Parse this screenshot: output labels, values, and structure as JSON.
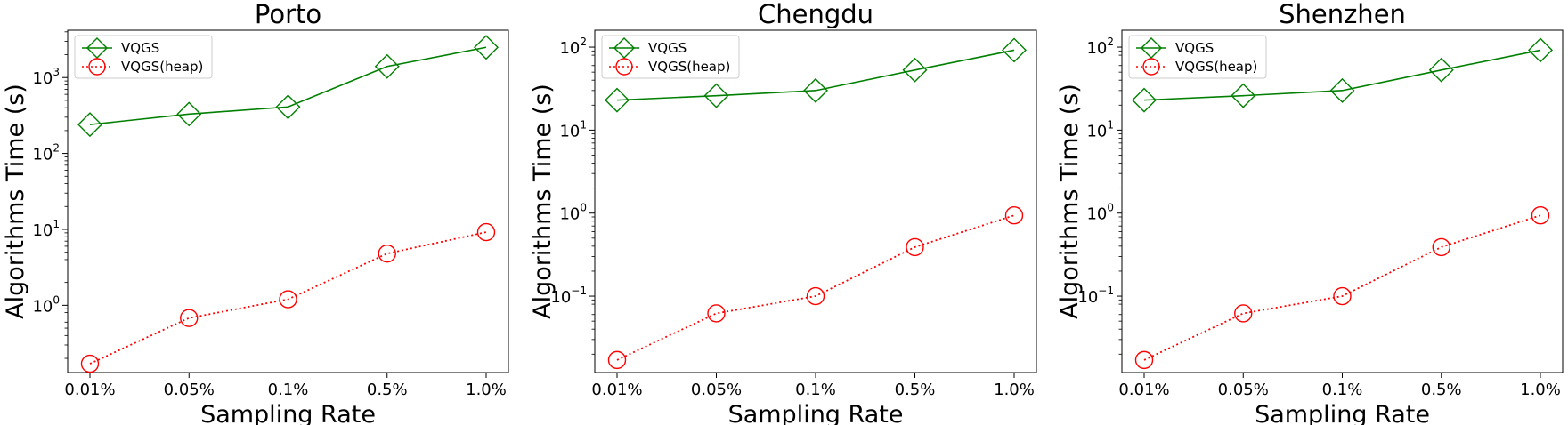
{
  "colors": {
    "vqgs": "#008000",
    "heap": "#ff0000"
  },
  "chart_data": [
    {
      "type": "line",
      "title": "Porto",
      "xlabel": "Sampling Rate",
      "ylabel": "Algorithms Time (s)",
      "yscale": "log",
      "ylim": [
        0.13,
        4200
      ],
      "yticks": [
        {
          "value": 1,
          "base": "10",
          "exp": "0"
        },
        {
          "value": 10,
          "base": "10",
          "exp": "1"
        },
        {
          "value": 100,
          "base": "10",
          "exp": "2"
        },
        {
          "value": 1000,
          "base": "10",
          "exp": "3"
        }
      ],
      "categories": [
        "0.01%",
        "0.05%",
        "0.1%",
        "0.5%",
        "1.0%"
      ],
      "legend": "top-left",
      "grid": false,
      "series": [
        {
          "name": "VQGS",
          "marker": "diamond",
          "line": "solid",
          "values": [
            240,
            330,
            410,
            1400,
            2500
          ]
        },
        {
          "name": "VQGS(heap)",
          "marker": "circle",
          "line": "dotted",
          "values": [
            0.17,
            0.68,
            1.2,
            4.8,
            9.2
          ]
        }
      ]
    },
    {
      "type": "line",
      "title": "Chengdu",
      "xlabel": "Sampling Rate",
      "ylabel": "Algorithms Time (s)",
      "yscale": "log",
      "ylim": [
        0.012,
        160
      ],
      "yticks": [
        {
          "value": 0.1,
          "base": "10",
          "exp": "−1"
        },
        {
          "value": 1,
          "base": "10",
          "exp": "0"
        },
        {
          "value": 10,
          "base": "10",
          "exp": "1"
        },
        {
          "value": 100,
          "base": "10",
          "exp": "2"
        }
      ],
      "categories": [
        "0.01%",
        "0.05%",
        "0.1%",
        "0.5%",
        "1.0%"
      ],
      "legend": "top-left",
      "grid": false,
      "series": [
        {
          "name": "VQGS",
          "marker": "diamond",
          "line": "solid",
          "values": [
            23,
            26,
            30,
            53,
            92
          ]
        },
        {
          "name": "VQGS(heap)",
          "marker": "circle",
          "line": "dotted",
          "values": [
            0.017,
            0.062,
            0.1,
            0.39,
            0.94
          ]
        }
      ]
    },
    {
      "type": "line",
      "title": "Shenzhen",
      "xlabel": "Sampling Rate",
      "ylabel": "Algorithms Time (s)",
      "yscale": "log",
      "ylim": [
        0.012,
        160
      ],
      "yticks": [
        {
          "value": 0.1,
          "base": "10",
          "exp": "−1"
        },
        {
          "value": 1,
          "base": "10",
          "exp": "0"
        },
        {
          "value": 10,
          "base": "10",
          "exp": "1"
        },
        {
          "value": 100,
          "base": "10",
          "exp": "2"
        }
      ],
      "categories": [
        "0.01%",
        "0.05%",
        "0.1%",
        "0.5%",
        "1.0%"
      ],
      "legend": "top-left",
      "grid": false,
      "series": [
        {
          "name": "VQGS",
          "marker": "diamond",
          "line": "solid",
          "values": [
            23,
            26,
            30,
            53,
            92
          ]
        },
        {
          "name": "VQGS(heap)",
          "marker": "circle",
          "line": "dotted",
          "values": [
            0.017,
            0.062,
            0.1,
            0.39,
            0.94
          ]
        }
      ]
    }
  ]
}
